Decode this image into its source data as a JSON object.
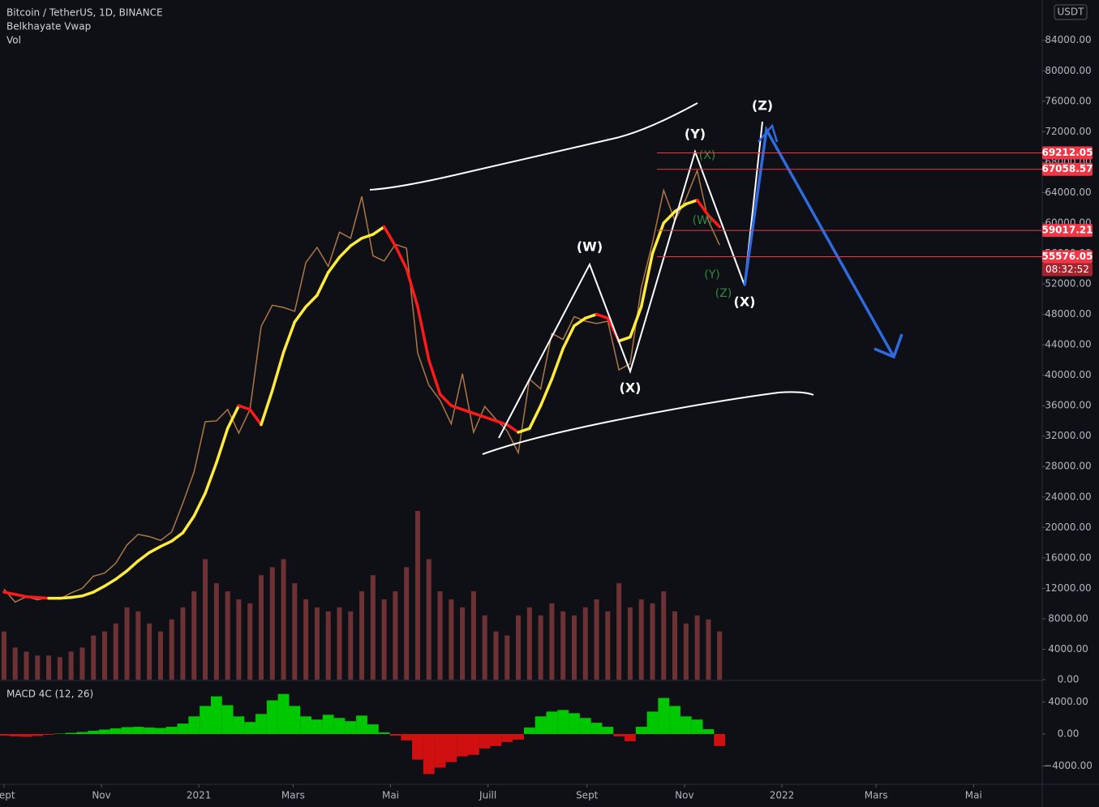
{
  "chart_data": {
    "type": "price",
    "title": "Bitcoin / TetherUS, 1D, BINANCE",
    "indicator": "Belkhayate Vwap",
    "volume_label": "Vol",
    "currency": "USDT",
    "countdown": "08:32:52",
    "x": [
      0,
      7,
      14,
      21,
      28,
      35,
      42,
      49,
      56,
      63,
      70,
      77,
      84,
      91,
      98,
      105,
      112,
      119,
      126,
      133,
      140,
      147,
      154,
      161,
      168,
      175,
      182,
      189,
      196,
      203,
      210,
      217,
      224,
      231,
      238,
      245,
      252,
      259,
      266,
      273,
      280,
      287,
      294,
      301,
      308,
      315,
      322,
      329,
      336,
      343,
      350,
      357,
      364,
      371,
      378,
      385,
      392,
      399,
      406,
      413,
      420,
      427,
      434,
      441,
      448
    ],
    "xlim": [
      -2.5,
      650
    ],
    "xticks": [
      {
        "value": 0,
        "label": "Sept"
      },
      {
        "value": 61,
        "label": "Nov"
      },
      {
        "value": 122,
        "label": "2021"
      },
      {
        "value": 181,
        "label": "Mars"
      },
      {
        "value": 242,
        "label": "Mai"
      },
      {
        "value": 303,
        "label": "Juill"
      },
      {
        "value": 365,
        "label": "Sept"
      },
      {
        "value": 426,
        "label": "Nov"
      },
      {
        "value": 487,
        "label": "2022"
      },
      {
        "value": 546,
        "label": "Mars"
      },
      {
        "value": 607,
        "label": "Mai"
      }
    ],
    "ylim": [
      0,
      89300
    ],
    "yticks": [
      {
        "value": 0,
        "label": "0.00"
      },
      {
        "value": 4000,
        "label": "4000.00"
      },
      {
        "value": 8000,
        "label": "8000.00"
      },
      {
        "value": 12000,
        "label": "12000.00"
      },
      {
        "value": 16000,
        "label": "16000.00"
      },
      {
        "value": 20000,
        "label": "20000.00"
      },
      {
        "value": 24000,
        "label": "24000.00"
      },
      {
        "value": 28000,
        "label": "28000.00"
      },
      {
        "value": 32000,
        "label": "32000.00"
      },
      {
        "value": 36000,
        "label": "36000.00"
      },
      {
        "value": 40000,
        "label": "40000.00"
      },
      {
        "value": 44000,
        "label": "44000.00"
      },
      {
        "value": 48000,
        "label": "48000.00"
      },
      {
        "value": 52000,
        "label": "52000.00"
      },
      {
        "value": 56000,
        "label": "56000.00"
      },
      {
        "value": 60000,
        "label": "60000.00"
      },
      {
        "value": 64000,
        "label": "64000.00"
      },
      {
        "value": 68000,
        "label": "68000.00"
      },
      {
        "value": 72000,
        "label": "72000.00"
      },
      {
        "value": 76000,
        "label": "76000.00"
      },
      {
        "value": 80000,
        "label": "80000.00"
      },
      {
        "value": 84000,
        "label": "84000.00"
      }
    ],
    "series": [
      {
        "name": "Price",
        "color": "#c9894f",
        "values": [
          11900,
          10200,
          10900,
          10500,
          10800,
          10600,
          11400,
          12000,
          13600,
          14000,
          15300,
          17700,
          19100,
          18800,
          18300,
          19400,
          23200,
          27300,
          33900,
          34000,
          35500,
          32400,
          35500,
          46400,
          49200,
          48900,
          48400,
          54800,
          56800,
          54300,
          58800,
          58000,
          63500,
          55700,
          55000,
          57200,
          56700,
          42900,
          38700,
          36700,
          33600,
          40200,
          32500,
          35900,
          34200,
          32700,
          29800,
          39500,
          38200,
          45500,
          44700,
          47700,
          47100,
          46800,
          47100,
          40700,
          41500,
          51500,
          57400,
          64300,
          60300,
          63200,
          66900,
          60300,
          57100
        ]
      },
      {
        "name": "Belkhayate Vwap",
        "color": "#ffeb3b",
        "down_color": "#ff1a1a",
        "values": [
          11500,
          11200,
          10900,
          10800,
          10700,
          10700,
          10800,
          11000,
          11500,
          12300,
          13200,
          14300,
          15600,
          16700,
          17500,
          18200,
          19300,
          21500,
          24500,
          28500,
          33000,
          36000,
          35500,
          33500,
          38000,
          43000,
          47000,
          49000,
          50500,
          53500,
          55500,
          57000,
          58000,
          58500,
          59500,
          57000,
          54000,
          49000,
          42000,
          37500,
          36000,
          35500,
          35000,
          34500,
          34000,
          33500,
          32500,
          33000,
          36000,
          39500,
          43500,
          46500,
          47500,
          48000,
          47500,
          44500,
          45000,
          49000,
          56000,
          60000,
          61500,
          62500,
          63000,
          61000,
          59500
        ]
      },
      {
        "name": "Vol",
        "color": "#b04a4a",
        "values": [
          60,
          40,
          35,
          30,
          30,
          28,
          35,
          40,
          55,
          60,
          70,
          90,
          85,
          70,
          60,
          75,
          90,
          110,
          150,
          120,
          110,
          100,
          95,
          130,
          140,
          150,
          120,
          100,
          90,
          85,
          90,
          85,
          110,
          130,
          100,
          110,
          140,
          210,
          150,
          110,
          100,
          90,
          110,
          80,
          60,
          55,
          80,
          90,
          80,
          95,
          85,
          80,
          90,
          100,
          85,
          120,
          90,
          100,
          95,
          110,
          85,
          70,
          80,
          75,
          60
        ]
      }
    ],
    "macd": {
      "name": "MACD 4C (12, 26)",
      "up_color": "#00c800",
      "down_color": "#d01010",
      "values": [
        -200,
        -300,
        -350,
        -250,
        -100,
        50,
        150,
        250,
        400,
        550,
        700,
        850,
        900,
        800,
        750,
        900,
        1300,
        2200,
        3500,
        4700,
        3600,
        2200,
        1500,
        2500,
        4200,
        5000,
        3500,
        2200,
        1800,
        2400,
        2000,
        1600,
        2300,
        1200,
        200,
        -200,
        -800,
        -3200,
        -5000,
        -4200,
        -3500,
        -2800,
        -2600,
        -1800,
        -1500,
        -1000,
        -700,
        800,
        2200,
        2800,
        3000,
        2600,
        2000,
        1400,
        900,
        -300,
        -900,
        900,
        2800,
        4500,
        3500,
        2200,
        1800,
        600,
        -1500
      ],
      "ylim": [
        -6278,
        6582
      ],
      "yticks": [
        {
          "value": 4000,
          "label": "4000.00"
        },
        {
          "value": 0,
          "label": "0.00"
        },
        {
          "value": -4000,
          "label": "−4000.00"
        }
      ]
    },
    "price_lines": [
      {
        "value": 69212.05,
        "label": "69212.05"
      },
      {
        "value": 67058.57,
        "label": "67058.57"
      },
      {
        "value": 59017.21,
        "label": "59017.21"
      },
      {
        "value": 55576.05,
        "label": "55576.05"
      }
    ],
    "wave_labels": [
      "(W)",
      "(X)",
      "(Y)",
      "(X)",
      "(Z)"
    ],
    "minor_wave_labels": [
      "(X)",
      "(W)",
      "(Y)",
      "(Z)"
    ]
  }
}
